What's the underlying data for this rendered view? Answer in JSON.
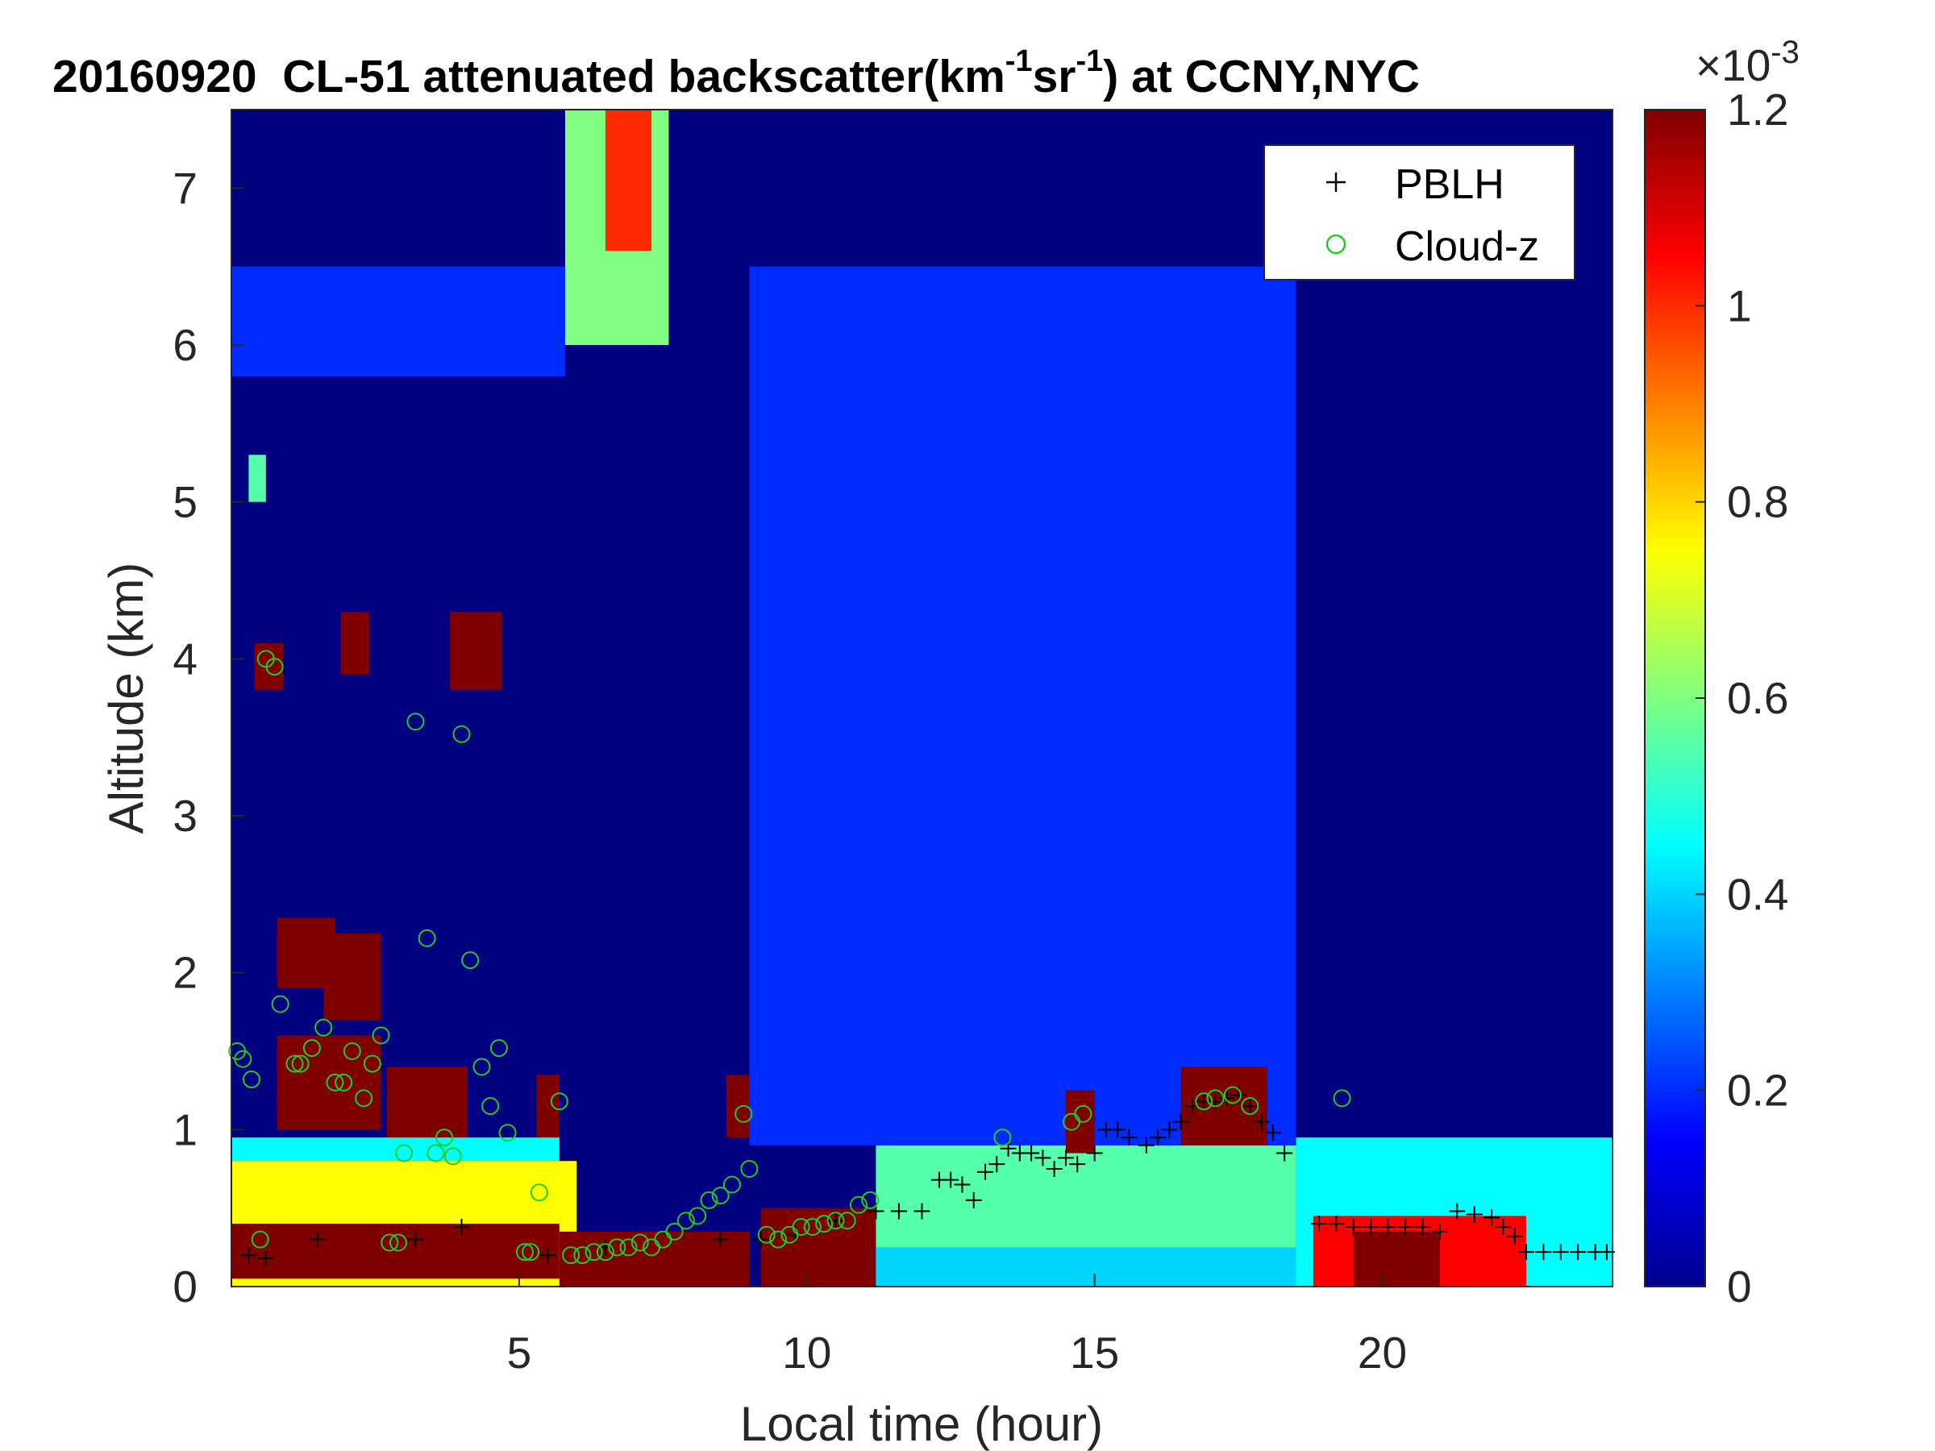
{
  "chart_data": {
    "type": "heatmap",
    "title": {
      "date": "20160920",
      "prefix": "CL-51 attenuated backscatter(km",
      "sup1": "-1",
      "mid": "sr",
      "sup2": "-1",
      "suffix": ") at CCNY,NYC"
    },
    "xlabel": "Local time (hour)",
    "ylabel": "Altitude (km)",
    "xlim": [
      0,
      24
    ],
    "ylim": [
      0,
      7.5
    ],
    "x_ticks": [
      5,
      10,
      15,
      20
    ],
    "x_tick_labels": [
      "5",
      "10",
      "15",
      "20"
    ],
    "y_ticks": [
      0,
      1,
      2,
      3,
      4,
      5,
      6,
      7
    ],
    "y_tick_labels": [
      "0",
      "1",
      "2",
      "3",
      "4",
      "5",
      "6",
      "7"
    ],
    "colorbar": {
      "colormap": "jet",
      "clim": [
        0,
        1.2
      ],
      "ticks": [
        0,
        0.2,
        0.4,
        0.6,
        0.8,
        1,
        1.2
      ],
      "tick_labels": [
        "0",
        "0.2",
        "0.4",
        "0.6",
        "0.8",
        "1",
        "1.2"
      ],
      "multiplier_base": "×10",
      "multiplier_exp": "-3"
    },
    "legend": {
      "placement": "top-right",
      "entries": [
        {
          "label": "PBLH",
          "marker": "plus",
          "color": "#000000"
        },
        {
          "label": "Cloud-z",
          "marker": "circle",
          "color": "#22cc22"
        }
      ]
    },
    "series": [
      {
        "name": "PBLH",
        "marker": "plus",
        "color": "#000000",
        "points": [
          [
            0.3,
            0.2
          ],
          [
            0.6,
            0.18
          ],
          [
            1.5,
            0.3
          ],
          [
            3.2,
            0.3
          ],
          [
            4.0,
            0.38
          ],
          [
            5.5,
            0.2
          ],
          [
            6.5,
            0.25
          ],
          [
            8.5,
            0.3
          ],
          [
            9.2,
            0.3
          ],
          [
            9.8,
            0.33
          ],
          [
            10.5,
            0.42
          ],
          [
            11.2,
            0.48
          ],
          [
            11.6,
            0.48
          ],
          [
            12.0,
            0.48
          ],
          [
            12.3,
            0.68
          ],
          [
            12.5,
            0.68
          ],
          [
            12.7,
            0.65
          ],
          [
            12.9,
            0.55
          ],
          [
            13.1,
            0.73
          ],
          [
            13.3,
            0.78
          ],
          [
            13.5,
            0.88
          ],
          [
            13.7,
            0.85
          ],
          [
            13.9,
            0.85
          ],
          [
            14.1,
            0.82
          ],
          [
            14.3,
            0.75
          ],
          [
            14.5,
            0.82
          ],
          [
            14.7,
            0.78
          ],
          [
            15.0,
            0.85
          ],
          [
            15.2,
            1.0
          ],
          [
            15.4,
            1.0
          ],
          [
            15.6,
            0.95
          ],
          [
            15.9,
            0.9
          ],
          [
            16.1,
            0.95
          ],
          [
            16.3,
            1.0
          ],
          [
            16.5,
            1.05
          ],
          [
            16.7,
            1.15
          ],
          [
            16.9,
            1.18
          ],
          [
            17.1,
            1.18
          ],
          [
            17.3,
            1.2
          ],
          [
            17.5,
            1.22
          ],
          [
            17.7,
            1.15
          ],
          [
            17.9,
            1.05
          ],
          [
            18.1,
            0.98
          ],
          [
            18.3,
            0.85
          ],
          [
            18.9,
            0.4
          ],
          [
            19.2,
            0.4
          ],
          [
            19.5,
            0.38
          ],
          [
            19.8,
            0.38
          ],
          [
            20.1,
            0.38
          ],
          [
            20.4,
            0.38
          ],
          [
            20.7,
            0.38
          ],
          [
            21.0,
            0.35
          ],
          [
            21.3,
            0.48
          ],
          [
            21.6,
            0.46
          ],
          [
            21.9,
            0.44
          ],
          [
            22.1,
            0.38
          ],
          [
            22.3,
            0.32
          ],
          [
            22.5,
            0.22
          ],
          [
            22.8,
            0.22
          ],
          [
            23.1,
            0.22
          ],
          [
            23.4,
            0.22
          ],
          [
            23.7,
            0.22
          ],
          [
            23.9,
            0.22
          ]
        ]
      },
      {
        "name": "Cloud-z",
        "marker": "circle",
        "color": "#22cc22",
        "points": [
          [
            0.1,
            1.5
          ],
          [
            0.2,
            1.45
          ],
          [
            0.35,
            1.32
          ],
          [
            0.5,
            0.3
          ],
          [
            0.6,
            4.0
          ],
          [
            0.75,
            3.95
          ],
          [
            0.85,
            1.8
          ],
          [
            1.1,
            1.42
          ],
          [
            1.2,
            1.42
          ],
          [
            1.4,
            1.52
          ],
          [
            1.6,
            1.65
          ],
          [
            1.8,
            1.3
          ],
          [
            1.95,
            1.3
          ],
          [
            2.1,
            1.5
          ],
          [
            2.3,
            1.2
          ],
          [
            2.45,
            1.42
          ],
          [
            2.6,
            1.6
          ],
          [
            2.75,
            0.28
          ],
          [
            2.9,
            0.28
          ],
          [
            3.0,
            0.85
          ],
          [
            3.2,
            3.6
          ],
          [
            3.4,
            2.22
          ],
          [
            3.55,
            0.85
          ],
          [
            3.7,
            0.95
          ],
          [
            3.85,
            0.83
          ],
          [
            4.0,
            3.52
          ],
          [
            4.15,
            2.08
          ],
          [
            4.35,
            1.4
          ],
          [
            4.5,
            1.15
          ],
          [
            4.65,
            1.52
          ],
          [
            4.8,
            0.98
          ],
          [
            5.1,
            0.22
          ],
          [
            5.2,
            0.22
          ],
          [
            5.35,
            0.6
          ],
          [
            5.7,
            1.18
          ],
          [
            5.9,
            0.2
          ],
          [
            6.1,
            0.2
          ],
          [
            6.3,
            0.22
          ],
          [
            6.5,
            0.22
          ],
          [
            6.7,
            0.25
          ],
          [
            6.9,
            0.25
          ],
          [
            7.1,
            0.28
          ],
          [
            7.3,
            0.25
          ],
          [
            7.5,
            0.3
          ],
          [
            7.7,
            0.35
          ],
          [
            7.9,
            0.42
          ],
          [
            8.1,
            0.45
          ],
          [
            8.3,
            0.55
          ],
          [
            8.5,
            0.58
          ],
          [
            8.7,
            0.65
          ],
          [
            8.9,
            1.1
          ],
          [
            9.0,
            0.75
          ],
          [
            9.3,
            0.33
          ],
          [
            9.5,
            0.3
          ],
          [
            9.7,
            0.33
          ],
          [
            9.9,
            0.38
          ],
          [
            10.1,
            0.38
          ],
          [
            10.3,
            0.4
          ],
          [
            10.5,
            0.42
          ],
          [
            10.7,
            0.42
          ],
          [
            10.9,
            0.52
          ],
          [
            11.1,
            0.55
          ],
          [
            13.4,
            0.95
          ],
          [
            14.6,
            1.05
          ],
          [
            14.8,
            1.1
          ],
          [
            16.9,
            1.18
          ],
          [
            17.1,
            1.2
          ],
          [
            17.4,
            1.22
          ],
          [
            17.7,
            1.15
          ],
          [
            19.3,
            1.2
          ]
        ]
      }
    ],
    "intensity_features": [
      {
        "t0": 0.0,
        "t1": 24.0,
        "z0": 0.0,
        "z1": 7.5,
        "v": 0.0
      },
      {
        "t0": 0.0,
        "t1": 5.7,
        "z0": 0.8,
        "z1": 0.95,
        "v": 0.45
      },
      {
        "t0": 0.0,
        "t1": 6.0,
        "z0": 0.0,
        "z1": 0.8,
        "v": 0.75
      },
      {
        "t0": 0.0,
        "t1": 5.7,
        "z0": 0.05,
        "z1": 0.4,
        "v": 1.2
      },
      {
        "t0": 5.7,
        "t1": 9.0,
        "z0": 0.0,
        "z1": 0.35,
        "v": 1.2
      },
      {
        "t0": 9.2,
        "t1": 11.2,
        "z0": 0.0,
        "z1": 0.5,
        "v": 1.2
      },
      {
        "t0": 11.2,
        "t1": 18.5,
        "z0": 0.0,
        "z1": 0.9,
        "v": 0.55
      },
      {
        "t0": 11.2,
        "t1": 18.5,
        "z0": 0.0,
        "z1": 0.25,
        "v": 0.4
      },
      {
        "t0": 18.5,
        "t1": 24.0,
        "z0": 0.0,
        "z1": 0.95,
        "v": 0.45
      },
      {
        "t0": 18.8,
        "t1": 22.5,
        "z0": 0.0,
        "z1": 0.45,
        "v": 1.05
      },
      {
        "t0": 19.5,
        "t1": 21.0,
        "z0": 0.0,
        "z1": 0.35,
        "v": 1.2
      },
      {
        "t0": 9.0,
        "t1": 18.5,
        "z0": 0.9,
        "z1": 6.5,
        "v": 0.2
      },
      {
        "t0": 0.0,
        "t1": 5.8,
        "z0": 5.8,
        "z1": 6.5,
        "v": 0.2
      },
      {
        "t0": 5.8,
        "t1": 7.6,
        "z0": 6.0,
        "z1": 7.5,
        "v": 0.6
      },
      {
        "t0": 6.5,
        "t1": 7.3,
        "z0": 6.6,
        "z1": 7.5,
        "v": 1.0
      },
      {
        "t0": 0.8,
        "t1": 1.8,
        "z0": 1.9,
        "z1": 2.35,
        "v": 1.2
      },
      {
        "t0": 1.6,
        "t1": 2.6,
        "z0": 1.7,
        "z1": 2.25,
        "v": 1.2
      },
      {
        "t0": 0.8,
        "t1": 2.6,
        "z0": 1.0,
        "z1": 1.6,
        "v": 1.2
      },
      {
        "t0": 2.7,
        "t1": 4.1,
        "z0": 0.95,
        "z1": 1.4,
        "v": 1.2
      },
      {
        "t0": 5.3,
        "t1": 5.7,
        "z0": 0.95,
        "z1": 1.35,
        "v": 1.2
      },
      {
        "t0": 8.6,
        "t1": 9.0,
        "z0": 0.95,
        "z1": 1.35,
        "v": 1.2
      },
      {
        "t0": 0.4,
        "t1": 0.9,
        "z0": 3.8,
        "z1": 4.1,
        "v": 1.2
      },
      {
        "t0": 1.9,
        "t1": 2.4,
        "z0": 3.9,
        "z1": 4.3,
        "v": 1.2
      },
      {
        "t0": 3.8,
        "t1": 4.7,
        "z0": 3.8,
        "z1": 4.3,
        "v": 1.2
      },
      {
        "t0": 0.3,
        "t1": 0.6,
        "z0": 5.0,
        "z1": 5.3,
        "v": 0.55
      },
      {
        "t0": 14.5,
        "t1": 15.0,
        "z0": 0.85,
        "z1": 1.25,
        "v": 1.2
      },
      {
        "t0": 16.5,
        "t1": 18.0,
        "z0": 0.9,
        "z1": 1.4,
        "v": 1.2
      }
    ]
  }
}
